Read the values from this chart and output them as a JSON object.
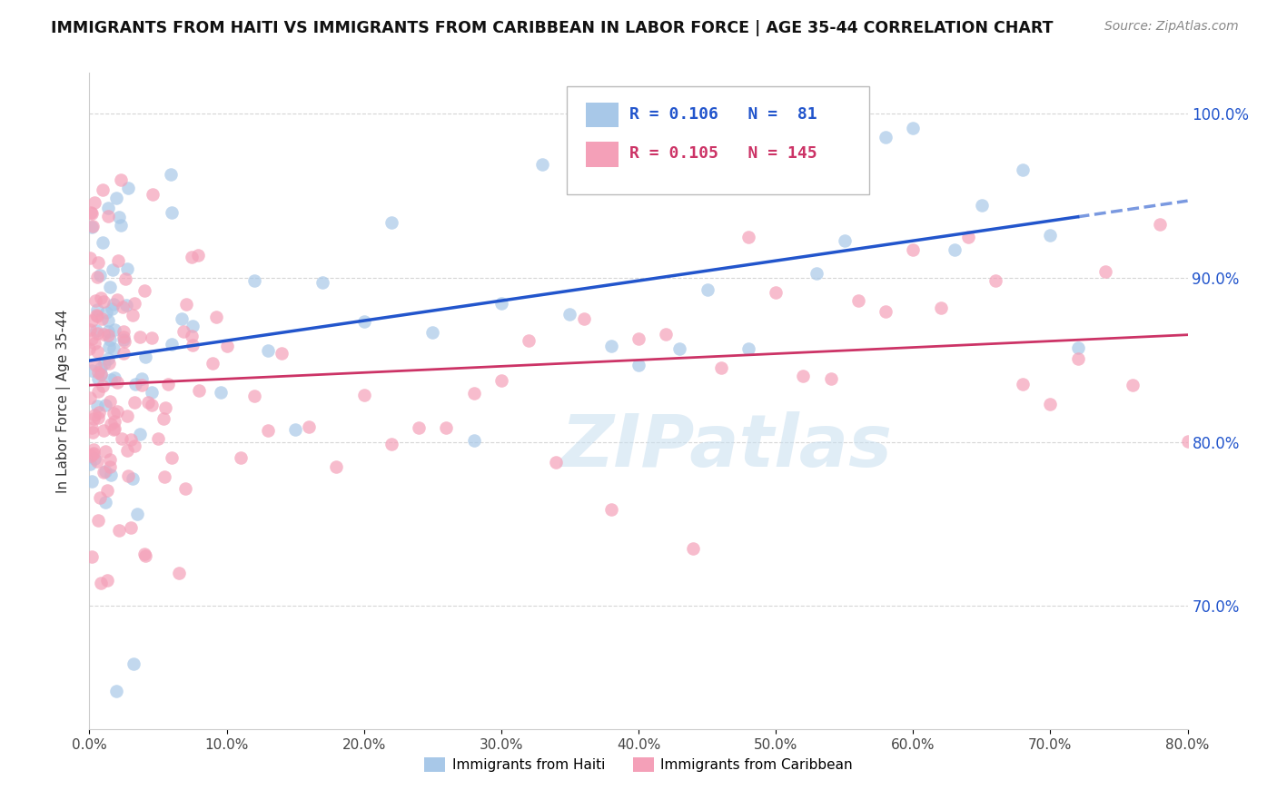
{
  "title": "IMMIGRANTS FROM HAITI VS IMMIGRANTS FROM CARIBBEAN IN LABOR FORCE | AGE 35-44 CORRELATION CHART",
  "source": "Source: ZipAtlas.com",
  "ylabel": "In Labor Force | Age 35-44",
  "legend_haiti": "Immigrants from Haiti",
  "legend_caribbean": "Immigrants from Caribbean",
  "R_haiti": 0.106,
  "N_haiti": 81,
  "R_caribbean": 0.105,
  "N_caribbean": 145,
  "color_haiti": "#a8c8e8",
  "color_caribbean": "#f4a0b8",
  "line_haiti": "#2255cc",
  "line_caribbean": "#cc3366",
  "watermark": "ZIPatlas",
  "xlim": [
    0.0,
    0.8
  ],
  "ylim": [
    0.625,
    1.025
  ],
  "x_ticks": [
    0.0,
    0.1,
    0.2,
    0.3,
    0.4,
    0.5,
    0.6,
    0.7,
    0.8
  ],
  "y_ticks": [
    0.7,
    0.8,
    0.9,
    1.0
  ],
  "seed_haiti": 42,
  "seed_caribbean": 99
}
